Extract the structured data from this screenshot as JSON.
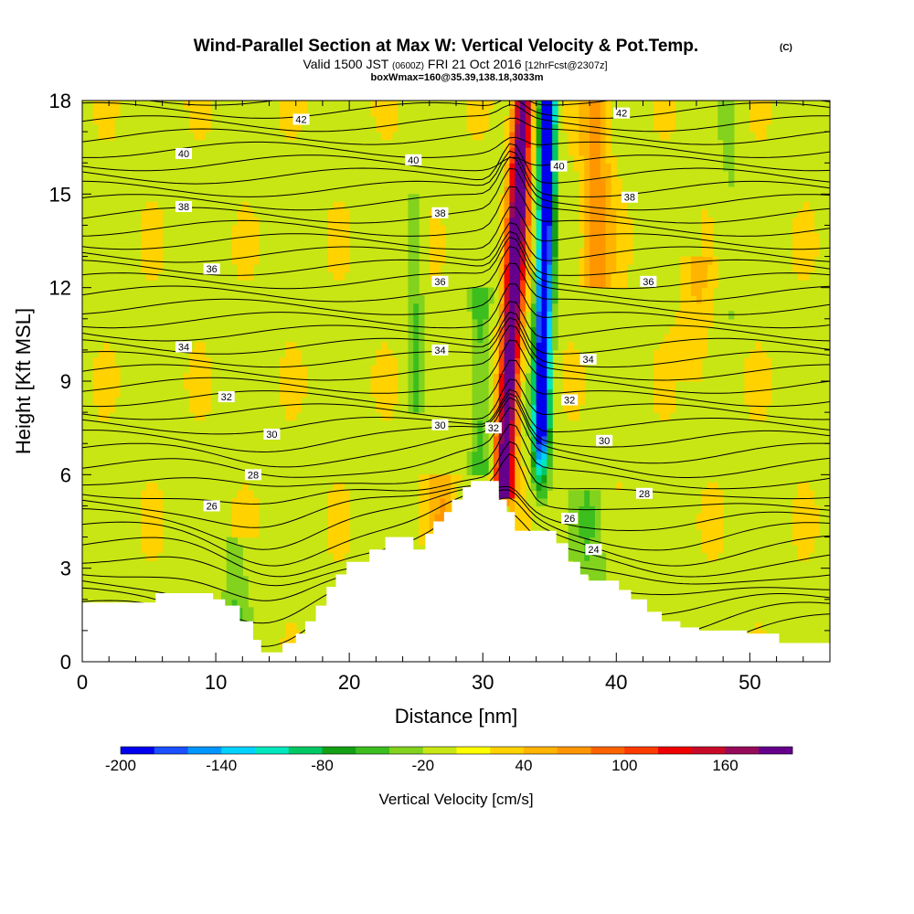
{
  "header": {
    "title": "Wind-Parallel Section at Max W: Vertical Velocity & Pot.Temp.",
    "title_suffix": "(C)",
    "valid_prefix": "Valid 1500 JST",
    "valid_zulu": "(0600Z)",
    "valid_date": "FRI 21 Oct 2016",
    "forecast_info": "[12hrFcst@2307z]",
    "box_info": "boxWmax=160@35.39,138.18,3033m"
  },
  "chart_data": {
    "type": "heatmap",
    "xlabel": "Distance [nm]",
    "ylabel": "Height [Kft MSL]",
    "xlim": [
      0,
      56
    ],
    "ylim": [
      0,
      18
    ],
    "x_ticks": [
      0,
      10,
      20,
      30,
      40,
      50
    ],
    "y_ticks": [
      0,
      3,
      6,
      9,
      12,
      15,
      18
    ],
    "colorbar": {
      "label": "Vertical Velocity [cm/s]",
      "levels": [
        -200,
        -180,
        -160,
        -140,
        -120,
        -100,
        -80,
        -60,
        -40,
        -20,
        0,
        20,
        40,
        60,
        80,
        100,
        120,
        140,
        160,
        180,
        200
      ],
      "tick_labels": [
        "-200",
        "-140",
        "-80",
        "-20",
        "40",
        "100",
        "160"
      ],
      "colors": [
        "#0000ee",
        "#1a50ff",
        "#0096ff",
        "#00d2ff",
        "#00e6be",
        "#00c864",
        "#14a014",
        "#3cbe1e",
        "#82d21e",
        "#c8e614",
        "#ffff00",
        "#ffd200",
        "#ffb400",
        "#ff9600",
        "#ff6400",
        "#ff3c00",
        "#ee0000",
        "#c80a28",
        "#960a5a",
        "#64008c"
      ]
    },
    "theta_contours": [
      {
        "label": "24",
        "x": 38.3,
        "y": 3.6
      },
      {
        "label": "26",
        "x": 9.7,
        "y": 5.0
      },
      {
        "label": "26",
        "x": 36.5,
        "y": 4.6
      },
      {
        "label": "28",
        "x": 12.8,
        "y": 6.0
      },
      {
        "label": "28",
        "x": 42.1,
        "y": 5.4
      },
      {
        "label": "30",
        "x": 14.2,
        "y": 7.3
      },
      {
        "label": "30",
        "x": 26.8,
        "y": 7.6
      },
      {
        "label": "30",
        "x": 39.1,
        "y": 7.1
      },
      {
        "label": "32",
        "x": 30.8,
        "y": 7.5
      },
      {
        "label": "32",
        "x": 36.5,
        "y": 8.4
      },
      {
        "label": "32",
        "x": 10.8,
        "y": 8.5
      },
      {
        "label": "34",
        "x": 7.6,
        "y": 10.1
      },
      {
        "label": "34",
        "x": 26.8,
        "y": 10.0
      },
      {
        "label": "34",
        "x": 37.9,
        "y": 9.7
      },
      {
        "label": "36",
        "x": 9.7,
        "y": 12.6
      },
      {
        "label": "36",
        "x": 26.8,
        "y": 12.2
      },
      {
        "label": "36",
        "x": 42.4,
        "y": 12.2
      },
      {
        "label": "38",
        "x": 7.6,
        "y": 14.6
      },
      {
        "label": "38",
        "x": 26.8,
        "y": 14.4
      },
      {
        "label": "38",
        "x": 41.0,
        "y": 14.9
      },
      {
        "label": "40",
        "x": 7.6,
        "y": 16.3
      },
      {
        "label": "40",
        "x": 24.8,
        "y": 16.1
      },
      {
        "label": "40",
        "x": 35.7,
        "y": 15.9
      },
      {
        "label": "42",
        "x": 16.4,
        "y": 17.4
      },
      {
        "label": "42",
        "x": 40.4,
        "y": 17.6
      }
    ],
    "terrain": [
      [
        0,
        1.9
      ],
      [
        5.5,
        1.9
      ],
      [
        5.5,
        2.2
      ],
      [
        9.8,
        2.2
      ],
      [
        9.8,
        2.0
      ],
      [
        10.7,
        2.0
      ],
      [
        10.7,
        1.8
      ],
      [
        11.8,
        1.8
      ],
      [
        11.8,
        1.3
      ],
      [
        12.8,
        1.3
      ],
      [
        12.8,
        0.7
      ],
      [
        13.4,
        0.7
      ],
      [
        13.4,
        0.3
      ],
      [
        15.0,
        0.3
      ],
      [
        15.0,
        0.6
      ],
      [
        16.0,
        0.6
      ],
      [
        16.0,
        0.9
      ],
      [
        16.7,
        0.9
      ],
      [
        16.7,
        1.3
      ],
      [
        17.5,
        1.3
      ],
      [
        17.5,
        1.8
      ],
      [
        18.3,
        1.8
      ],
      [
        18.3,
        2.4
      ],
      [
        19.0,
        2.4
      ],
      [
        19.0,
        2.8
      ],
      [
        19.8,
        2.8
      ],
      [
        19.8,
        3.2
      ],
      [
        21.5,
        3.2
      ],
      [
        21.5,
        3.6
      ],
      [
        22.7,
        3.6
      ],
      [
        22.7,
        4.0
      ],
      [
        24.8,
        4.0
      ],
      [
        24.8,
        3.6
      ],
      [
        25.7,
        3.6
      ],
      [
        25.7,
        4.1
      ],
      [
        26.3,
        4.1
      ],
      [
        26.3,
        4.5
      ],
      [
        27.1,
        4.5
      ],
      [
        27.1,
        4.8
      ],
      [
        27.7,
        4.8
      ],
      [
        27.7,
        5.2
      ],
      [
        28.5,
        5.2
      ],
      [
        28.5,
        5.6
      ],
      [
        29.1,
        5.6
      ],
      [
        29.1,
        5.8
      ],
      [
        31.2,
        5.8
      ],
      [
        31.2,
        5.2
      ],
      [
        31.8,
        5.2
      ],
      [
        31.8,
        4.8
      ],
      [
        32.4,
        4.8
      ],
      [
        32.4,
        4.2
      ],
      [
        35.5,
        4.2
      ],
      [
        35.5,
        3.8
      ],
      [
        36.4,
        3.8
      ],
      [
        36.4,
        3.2
      ],
      [
        37.3,
        3.2
      ],
      [
        37.3,
        2.8
      ],
      [
        37.9,
        2.8
      ],
      [
        37.9,
        2.6
      ],
      [
        40.2,
        2.6
      ],
      [
        40.2,
        2.3
      ],
      [
        41.1,
        2.3
      ],
      [
        41.1,
        2.0
      ],
      [
        42.3,
        2.0
      ],
      [
        42.3,
        1.6
      ],
      [
        43.4,
        1.6
      ],
      [
        43.4,
        1.3
      ],
      [
        44.8,
        1.3
      ],
      [
        44.8,
        1.1
      ],
      [
        46.2,
        1.1
      ],
      [
        46.2,
        1.0
      ],
      [
        49.8,
        1.0
      ],
      [
        49.8,
        0.9
      ],
      [
        52.2,
        0.9
      ],
      [
        52.2,
        0.6
      ],
      [
        56,
        0.6
      ]
    ]
  }
}
